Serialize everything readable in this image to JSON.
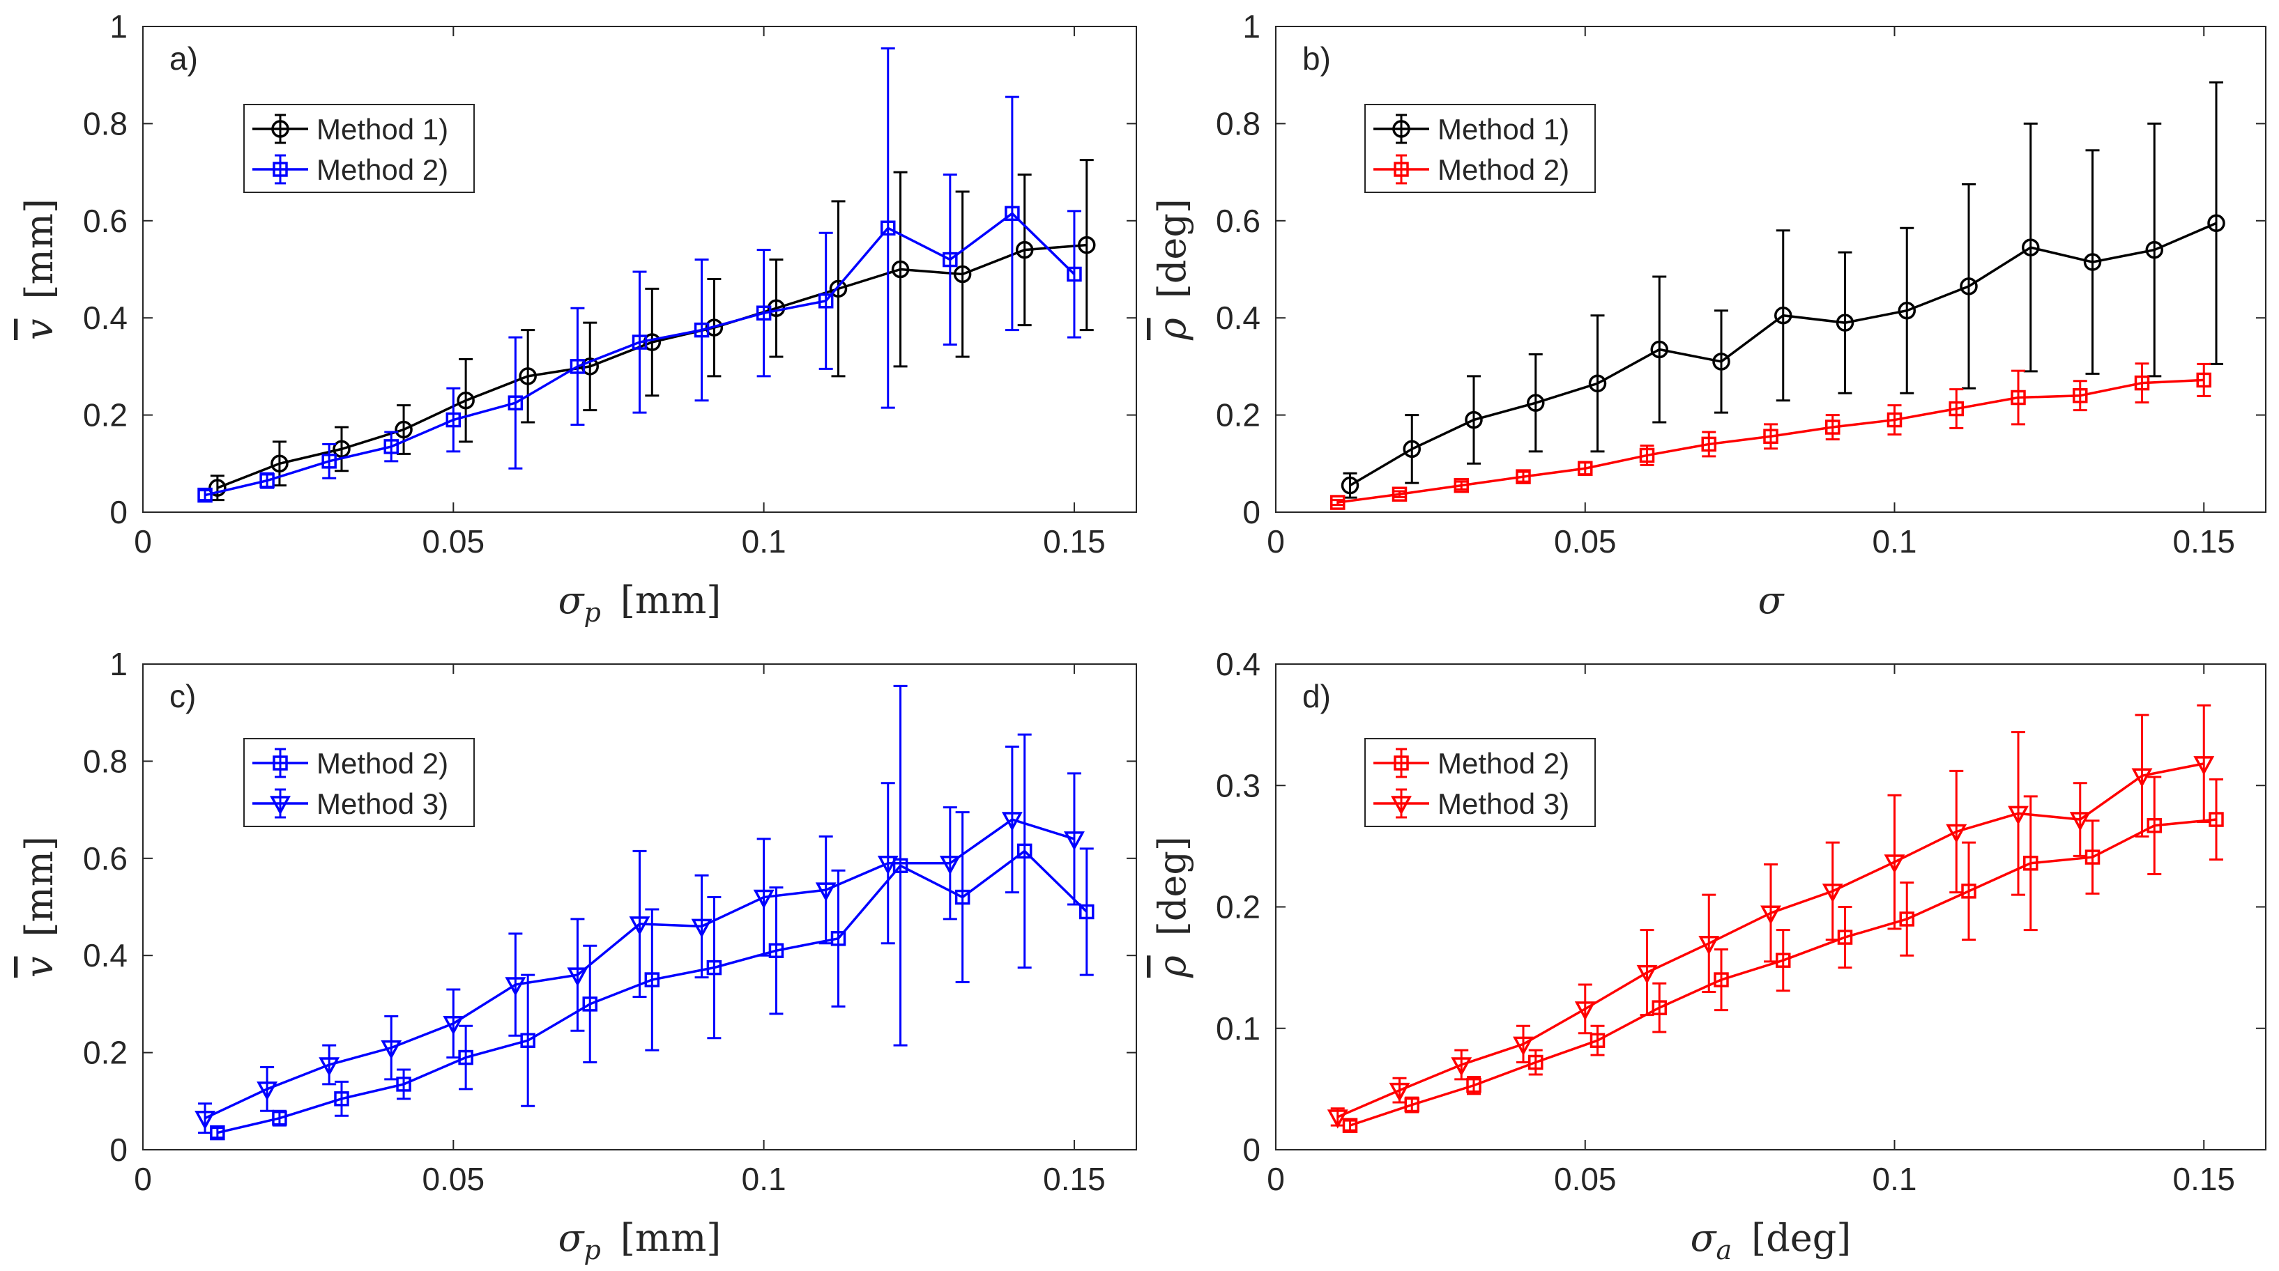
{
  "chart_data": [
    {
      "panel": "a)",
      "type": "line",
      "title": "",
      "xlabel": {
        "symbol": "σ",
        "sub": "p",
        "unit": "[mm]"
      },
      "ylabel": {
        "symbol": "v",
        "unit": "[mm]"
      },
      "xlim": [
        0,
        0.16
      ],
      "ylim": [
        0,
        1
      ],
      "xticks": [
        0,
        0.05,
        0.1,
        0.15
      ],
      "xtick_labels": [
        "0",
        "0.05",
        "0.1",
        "0.15"
      ],
      "yticks": [
        0,
        0.2,
        0.4,
        0.6,
        0.8,
        1
      ],
      "ytick_labels": [
        "0",
        "0.2",
        "0.4",
        "0.6",
        "0.8",
        "1"
      ],
      "grid": false,
      "legend_position": "top-left",
      "series": [
        {
          "name": "Method 1)",
          "color": "#000000",
          "marker": "circle",
          "x": [
            0.012,
            0.022,
            0.032,
            0.042,
            0.052,
            0.062,
            0.072,
            0.082,
            0.092,
            0.102,
            0.112,
            0.122,
            0.132,
            0.142,
            0.152
          ],
          "y": [
            0.05,
            0.1,
            0.13,
            0.17,
            0.23,
            0.28,
            0.3,
            0.35,
            0.38,
            0.42,
            0.46,
            0.5,
            0.49,
            0.54,
            0.55
          ],
          "err": [
            0.025,
            0.045,
            0.045,
            0.05,
            0.085,
            0.095,
            0.09,
            0.11,
            0.1,
            0.1,
            0.18,
            0.2,
            0.17,
            0.155,
            0.175
          ]
        },
        {
          "name": "Method 2)",
          "color": "#0000ff",
          "marker": "square",
          "x": [
            0.01,
            0.02,
            0.03,
            0.04,
            0.05,
            0.06,
            0.07,
            0.08,
            0.09,
            0.1,
            0.11,
            0.12,
            0.13,
            0.14,
            0.15
          ],
          "y": [
            0.035,
            0.065,
            0.105,
            0.135,
            0.19,
            0.225,
            0.3,
            0.35,
            0.375,
            0.41,
            0.435,
            0.585,
            0.52,
            0.615,
            0.49
          ],
          "err": [
            0.01,
            0.015,
            0.035,
            0.03,
            0.065,
            0.135,
            0.12,
            0.145,
            0.145,
            0.13,
            0.14,
            0.37,
            0.175,
            0.24,
            0.13
          ]
        }
      ]
    },
    {
      "panel": "b)",
      "type": "line",
      "title": "",
      "xlabel": {
        "symbol": "σ",
        "sub": "",
        "unit": ""
      },
      "ylabel": {
        "symbol": "ρ",
        "unit": "[deg]"
      },
      "xlim": [
        0,
        0.16
      ],
      "ylim": [
        0,
        1
      ],
      "xticks": [
        0,
        0.05,
        0.1,
        0.15
      ],
      "xtick_labels": [
        "0",
        "0.05",
        "0.1",
        "0.15"
      ],
      "yticks": [
        0,
        0.2,
        0.4,
        0.6,
        0.8,
        1
      ],
      "ytick_labels": [
        "0",
        "0.2",
        "0.4",
        "0.6",
        "0.8",
        "1"
      ],
      "grid": false,
      "legend_position": "top-left",
      "series": [
        {
          "name": "Method 1)",
          "color": "#000000",
          "marker": "circle",
          "x": [
            0.012,
            0.022,
            0.032,
            0.042,
            0.052,
            0.062,
            0.072,
            0.082,
            0.092,
            0.102,
            0.112,
            0.122,
            0.132,
            0.142,
            0.152
          ],
          "y": [
            0.055,
            0.13,
            0.19,
            0.225,
            0.265,
            0.335,
            0.31,
            0.405,
            0.39,
            0.415,
            0.465,
            0.545,
            0.515,
            0.54,
            0.595
          ],
          "err": [
            0.025,
            0.07,
            0.09,
            0.1,
            0.14,
            0.15,
            0.105,
            0.175,
            0.145,
            0.17,
            0.21,
            0.255,
            0.23,
            0.26,
            0.29
          ]
        },
        {
          "name": "Method 2)",
          "color": "#ff0000",
          "marker": "square",
          "x": [
            0.01,
            0.02,
            0.03,
            0.04,
            0.05,
            0.06,
            0.07,
            0.08,
            0.09,
            0.1,
            0.11,
            0.12,
            0.13,
            0.14,
            0.15
          ],
          "y": [
            0.02,
            0.037,
            0.055,
            0.073,
            0.09,
            0.117,
            0.14,
            0.156,
            0.175,
            0.19,
            0.213,
            0.236,
            0.24,
            0.266,
            0.272
          ],
          "err": [
            0.005,
            0.006,
            0.008,
            0.01,
            0.012,
            0.02,
            0.025,
            0.025,
            0.025,
            0.03,
            0.04,
            0.055,
            0.03,
            0.04,
            0.033
          ]
        }
      ]
    },
    {
      "panel": "c)",
      "type": "line",
      "title": "",
      "xlabel": {
        "symbol": "σ",
        "sub": "p",
        "unit": "[mm]"
      },
      "ylabel": {
        "symbol": "v",
        "unit": "[mm]"
      },
      "xlim": [
        0,
        0.16
      ],
      "ylim": [
        0,
        1
      ],
      "xticks": [
        0,
        0.05,
        0.1,
        0.15
      ],
      "xtick_labels": [
        "0",
        "0.05",
        "0.1",
        "0.15"
      ],
      "yticks": [
        0,
        0.2,
        0.4,
        0.6,
        0.8,
        1
      ],
      "ytick_labels": [
        "0",
        "0.2",
        "0.4",
        "0.6",
        "0.8",
        "1"
      ],
      "grid": false,
      "legend_position": "top-left",
      "series": [
        {
          "name": "Method 2)",
          "color": "#0000ff",
          "marker": "square",
          "x": [
            0.012,
            0.022,
            0.032,
            0.042,
            0.052,
            0.062,
            0.072,
            0.082,
            0.092,
            0.102,
            0.112,
            0.122,
            0.132,
            0.142,
            0.152
          ],
          "y": [
            0.035,
            0.065,
            0.105,
            0.135,
            0.19,
            0.225,
            0.3,
            0.35,
            0.375,
            0.41,
            0.435,
            0.585,
            0.52,
            0.615,
            0.49
          ],
          "err": [
            0.01,
            0.015,
            0.035,
            0.03,
            0.065,
            0.135,
            0.12,
            0.145,
            0.145,
            0.13,
            0.14,
            0.37,
            0.175,
            0.24,
            0.13
          ]
        },
        {
          "name": "Method 3)",
          "color": "#0000ff",
          "marker": "triangle-down",
          "x": [
            0.01,
            0.02,
            0.03,
            0.04,
            0.05,
            0.06,
            0.07,
            0.08,
            0.09,
            0.1,
            0.11,
            0.12,
            0.13,
            0.14,
            0.15
          ],
          "y": [
            0.065,
            0.125,
            0.175,
            0.21,
            0.26,
            0.34,
            0.36,
            0.465,
            0.46,
            0.52,
            0.535,
            0.59,
            0.59,
            0.68,
            0.64
          ],
          "err": [
            0.03,
            0.045,
            0.04,
            0.065,
            0.07,
            0.105,
            0.115,
            0.15,
            0.105,
            0.12,
            0.11,
            0.165,
            0.115,
            0.15,
            0.135
          ]
        }
      ]
    },
    {
      "panel": "d)",
      "type": "line",
      "title": "",
      "xlabel": {
        "symbol": "σ",
        "sub": "a",
        "unit": "[deg]"
      },
      "ylabel": {
        "symbol": "ρ",
        "unit": "[deg]"
      },
      "xlim": [
        0,
        0.16
      ],
      "ylim": [
        0,
        0.4
      ],
      "xticks": [
        0,
        0.05,
        0.1,
        0.15
      ],
      "xtick_labels": [
        "0",
        "0.05",
        "0.1",
        "0.15"
      ],
      "yticks": [
        0,
        0.1,
        0.2,
        0.3,
        0.4
      ],
      "ytick_labels": [
        "0",
        "0.1",
        "0.2",
        "0.3",
        "0.4"
      ],
      "grid": false,
      "legend_position": "top-left",
      "series": [
        {
          "name": "Method 2)",
          "color": "#ff0000",
          "marker": "square",
          "x": [
            0.012,
            0.022,
            0.032,
            0.042,
            0.052,
            0.062,
            0.072,
            0.082,
            0.092,
            0.102,
            0.112,
            0.122,
            0.132,
            0.142,
            0.152
          ],
          "y": [
            0.02,
            0.037,
            0.053,
            0.072,
            0.09,
            0.117,
            0.14,
            0.156,
            0.175,
            0.19,
            0.213,
            0.236,
            0.241,
            0.267,
            0.272
          ],
          "err": [
            0.004,
            0.006,
            0.007,
            0.01,
            0.012,
            0.02,
            0.025,
            0.025,
            0.025,
            0.03,
            0.04,
            0.055,
            0.03,
            0.04,
            0.033
          ]
        },
        {
          "name": "Method 3)",
          "color": "#ff0000",
          "marker": "triangle-down",
          "x": [
            0.01,
            0.02,
            0.03,
            0.04,
            0.05,
            0.06,
            0.07,
            0.08,
            0.09,
            0.1,
            0.11,
            0.12,
            0.13,
            0.14,
            0.15
          ],
          "y": [
            0.027,
            0.049,
            0.07,
            0.087,
            0.116,
            0.146,
            0.17,
            0.195,
            0.213,
            0.237,
            0.262,
            0.277,
            0.272,
            0.308,
            0.318
          ],
          "err": [
            0.007,
            0.01,
            0.012,
            0.015,
            0.02,
            0.035,
            0.04,
            0.04,
            0.04,
            0.055,
            0.05,
            0.067,
            0.03,
            0.05,
            0.048
          ]
        }
      ]
    }
  ]
}
